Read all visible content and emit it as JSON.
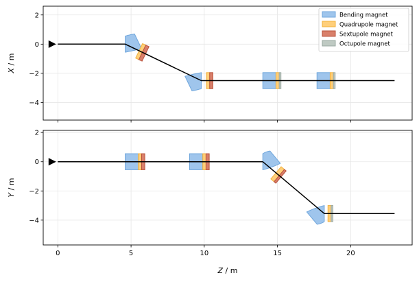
{
  "chart_data": {
    "type": "line",
    "legend": {
      "placement": "top-right",
      "entries": [
        {
          "label": "Bending magnet",
          "face": "#9fc5ec",
          "edge": "#6fa6dc"
        },
        {
          "label": "Quadrupole magnet",
          "face": "#ffcf7a",
          "edge": "#f2b13b"
        },
        {
          "label": "Sextupole magnet",
          "face": "#d9806b",
          "edge": "#b8503a"
        },
        {
          "label": "Octupole magnet",
          "face": "#bfcac3",
          "edge": "#9aa8a0"
        }
      ]
    },
    "xlabel": "Z / m",
    "xlim": [
      -1.0,
      24.2
    ],
    "xticks": [
      0,
      5,
      10,
      15,
      20
    ],
    "xtick_labels": [
      "0",
      "5",
      "10",
      "15",
      "20"
    ],
    "grid": true,
    "panels": [
      {
        "ylabel": "X / m",
        "ylim": [
          -5.2,
          2.6
        ],
        "yticks": [
          2,
          0,
          -2,
          -4
        ],
        "ytick_labels": [
          "2",
          "0",
          "−2",
          "−4"
        ],
        "beamline": [
          [
            0,
            0
          ],
          [
            4.6,
            0
          ],
          [
            9.8,
            -2.5
          ],
          [
            23,
            -2.5
          ]
        ],
        "source_marker": [
          -0.4,
          0
        ],
        "bends": [
          {
            "z": 4.6,
            "y": 0,
            "from_slope": 0,
            "to_slope": -0.48
          },
          {
            "z": 9.8,
            "y": -2.5,
            "from_slope": -0.48,
            "to_slope": 0
          }
        ],
        "straight_elements": [
          {
            "kind": "quadrupole",
            "z": 10.15,
            "y": -2.5,
            "len": 0.22
          },
          {
            "kind": "sextupole",
            "z": 10.37,
            "y": -2.5,
            "len": 0.22
          },
          {
            "kind": "bending",
            "z": 14.0,
            "y": -2.5,
            "len": 0.9
          },
          {
            "kind": "quadrupole",
            "z": 14.9,
            "y": -2.5,
            "len": 0.22
          },
          {
            "kind": "octupole",
            "z": 15.12,
            "y": -2.5,
            "len": 0.12
          },
          {
            "kind": "bending",
            "z": 17.7,
            "y": -2.5,
            "len": 0.9
          },
          {
            "kind": "quadrupole",
            "z": 18.6,
            "y": -2.5,
            "len": 0.22
          },
          {
            "kind": "octupole",
            "z": 18.82,
            "y": -2.5,
            "len": 0.12
          }
        ],
        "sloped_elements": [
          {
            "kind": "quadrupole",
            "z": 5.55,
            "len": 0.22
          },
          {
            "kind": "sextupole",
            "z": 5.77,
            "len": 0.22
          }
        ]
      },
      {
        "ylabel": "Y / m",
        "ylim": [
          -5.7,
          2.15
        ],
        "yticks": [
          2,
          0,
          -2,
          -4
        ],
        "ytick_labels": [
          "2",
          "0",
          "−2",
          "−4"
        ],
        "beamline": [
          [
            0,
            0
          ],
          [
            14.0,
            0
          ],
          [
            18.2,
            -3.55
          ],
          [
            23,
            -3.55
          ]
        ],
        "source_marker": [
          -0.4,
          0
        ],
        "bends": [
          {
            "z": 14.0,
            "y": 0,
            "from_slope": 0,
            "to_slope": -0.845
          },
          {
            "z": 18.2,
            "y": -3.55,
            "from_slope": -0.845,
            "to_slope": 0
          }
        ],
        "straight_elements": [
          {
            "kind": "bending",
            "z": 4.6,
            "y": 0,
            "len": 0.9
          },
          {
            "kind": "quadrupole",
            "z": 5.5,
            "y": 0,
            "len": 0.22
          },
          {
            "kind": "sextupole",
            "z": 5.72,
            "y": 0,
            "len": 0.22
          },
          {
            "kind": "bending",
            "z": 9.0,
            "y": 0,
            "len": 0.9
          },
          {
            "kind": "quadrupole",
            "z": 9.9,
            "y": 0,
            "len": 0.22
          },
          {
            "kind": "sextupole",
            "z": 10.12,
            "y": 0,
            "len": 0.22
          },
          {
            "kind": "quadrupole",
            "z": 18.45,
            "y": -3.55,
            "len": 0.22
          },
          {
            "kind": "octupole",
            "z": 18.67,
            "y": -3.55,
            "len": 0.12
          }
        ],
        "sloped_elements": [
          {
            "kind": "quadrupole",
            "z": 14.9,
            "len": 0.22
          },
          {
            "kind": "sextupole",
            "z": 15.12,
            "len": 0.12
          }
        ]
      }
    ]
  }
}
